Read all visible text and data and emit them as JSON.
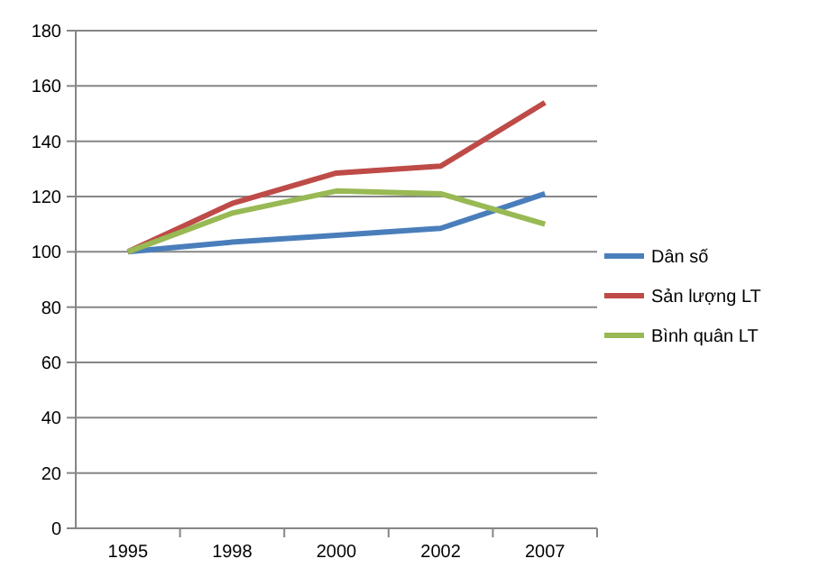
{
  "chart_data": {
    "type": "line",
    "categories": [
      "1995",
      "1998",
      "2000",
      "2002",
      "2007"
    ],
    "series": [
      {
        "name": "Dân số",
        "color": "#4a7ebb",
        "values": [
          100,
          103.5,
          106,
          108.5,
          121
        ]
      },
      {
        "name": "Sản lượng LT",
        "color": "#be4b48",
        "values": [
          100,
          117.5,
          128.5,
          131,
          154
        ]
      },
      {
        "name": "Bình quân LT",
        "color": "#98b954",
        "values": [
          100,
          114,
          122,
          121,
          110
        ]
      }
    ],
    "ylim": [
      0,
      180
    ],
    "yticks": [
      0,
      20,
      40,
      60,
      80,
      100,
      120,
      140,
      160,
      180
    ],
    "grid": "y",
    "legend": "right",
    "marker": "none",
    "line_style": "solid"
  }
}
